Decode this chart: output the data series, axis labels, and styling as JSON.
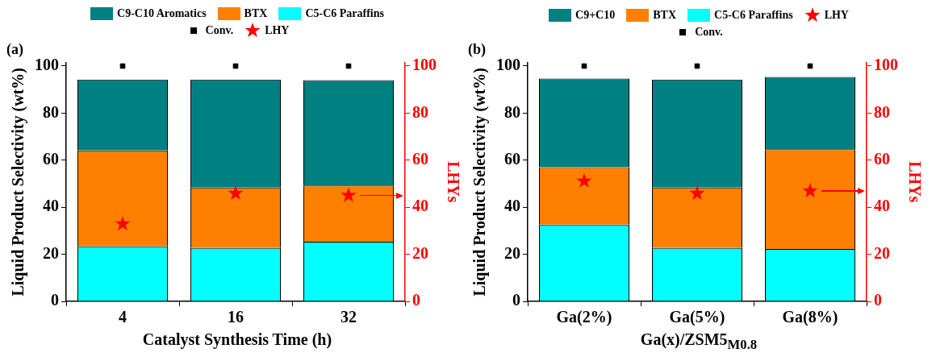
{
  "chart_data": [
    {
      "type": "bar",
      "title": "(a)",
      "xlabel": "Catalyst Synthesis Time (h)",
      "ylabel": "Liquid Product Selectivity (wt%)",
      "y2label": "LHYs",
      "categories": [
        "4",
        "16",
        "32"
      ],
      "stacked": true,
      "ylim": [
        0,
        101.5
      ],
      "yticks": [
        0,
        20,
        40,
        60,
        80,
        100
      ],
      "y2lim": [
        0,
        101.5
      ],
      "y2ticks": [
        0,
        20,
        40,
        60,
        80,
        100
      ],
      "legend": "top",
      "series": [
        {
          "name": "C5-C6 Paraffins",
          "color": "#00ffff",
          "values": [
            23.4,
            22.7,
            25.3
          ]
        },
        {
          "name": "BTX",
          "color": "#ff8000",
          "values": [
            40.7,
            25.7,
            23.9
          ]
        },
        {
          "name": "C9-C10 Aromatics",
          "color": "#008080",
          "values": [
            30.2,
            45.9,
            44.8
          ]
        },
        {
          "name": "Conv.",
          "type": "scatter",
          "marker": "square",
          "color": "#000000",
          "x": [
            "4",
            "16",
            "32"
          ],
          "values": [
            100,
            100,
            100
          ]
        },
        {
          "name": "LHY",
          "type": "scatter",
          "marker": "star",
          "color": "#ff0000",
          "axis": "y2",
          "x": [
            "4",
            "16",
            "32"
          ],
          "values": [
            32.9,
            45.9,
            45
          ]
        }
      ]
    },
    {
      "type": "bar",
      "title": "(b)",
      "xlabel": "Ga(x)/ZSM5$_{M0.8}$",
      "ylabel": "Liquid Product Selectivity (wt%)",
      "y2label": "LHYs",
      "categories": [
        "Ga(2%)",
        "Ga(5%)",
        "Ga(8%)"
      ],
      "stacked": true,
      "ylim": [
        0,
        101.5
      ],
      "yticks": [
        0,
        20,
        40,
        60,
        80,
        100
      ],
      "y2lim": [
        0,
        101.5
      ],
      "y2ticks": [
        0,
        20,
        40,
        60,
        80,
        100
      ],
      "legend": "top",
      "series": [
        {
          "name": "C5-C6 Paraffins",
          "color": "#00ffff",
          "values": [
            32.6,
            22.7,
            22.3
          ]
        },
        {
          "name": "BTX",
          "color": "#ff8000",
          "values": [
            24.4,
            25.7,
            42.3
          ]
        },
        {
          "name": "C9+C10",
          "color": "#008080",
          "values": [
            37.7,
            45.9,
            30.8
          ]
        },
        {
          "name": "LHY",
          "type": "scatter",
          "marker": "star",
          "color": "#ff0000",
          "axis": "y2",
          "x": [
            "Ga(2%)",
            "Ga(5%)",
            "Ga(8%)"
          ],
          "values": [
            51.1,
            45.9,
            46.9
          ]
        },
        {
          "name": "Conv.",
          "type": "scatter",
          "marker": "square",
          "color": "#000000",
          "x": [
            "Ga(2%)",
            "Ga(5%)",
            "Ga(8%)"
          ],
          "values": [
            100,
            100,
            100
          ]
        }
      ]
    }
  ]
}
